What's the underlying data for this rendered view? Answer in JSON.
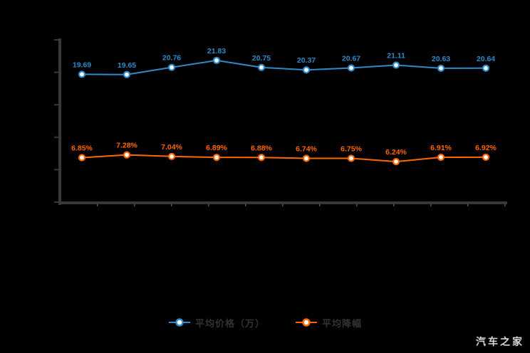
{
  "page": {
    "background": "#000000",
    "watermark": "汽车之家"
  },
  "chart_data": {
    "type": "line",
    "title": "",
    "xlabel": "",
    "ylabel": "",
    "x_tick_labels": [],
    "points_count": 10,
    "ylim": [
      0,
      25
    ],
    "y_tick_step": 5,
    "grid": false,
    "axis_color": "#383838",
    "background_color": "#000000",
    "legend_position": "bottom-center",
    "series": [
      {
        "name": "平均价格（万）",
        "color": "#2e8ac8",
        "values": [
          19.69,
          19.65,
          20.76,
          21.83,
          20.75,
          20.37,
          20.67,
          21.11,
          20.63,
          20.64
        ],
        "labels": [
          "19.69",
          "19.65",
          "20.76",
          "21.83",
          "20.75",
          "20.37",
          "20.67",
          "21.11",
          "20.63",
          "20.64"
        ]
      },
      {
        "name": "平均降幅",
        "color": "#ff6600",
        "values": [
          6.85,
          7.28,
          7.04,
          6.89,
          6.88,
          6.74,
          6.75,
          6.24,
          6.91,
          6.92
        ],
        "labels": [
          "6.85%",
          "7.28%",
          "7.04%",
          "6.89%",
          "6.88%",
          "6.74%",
          "6.75%",
          "6.24%",
          "6.91%",
          "6.92%"
        ]
      }
    ]
  }
}
